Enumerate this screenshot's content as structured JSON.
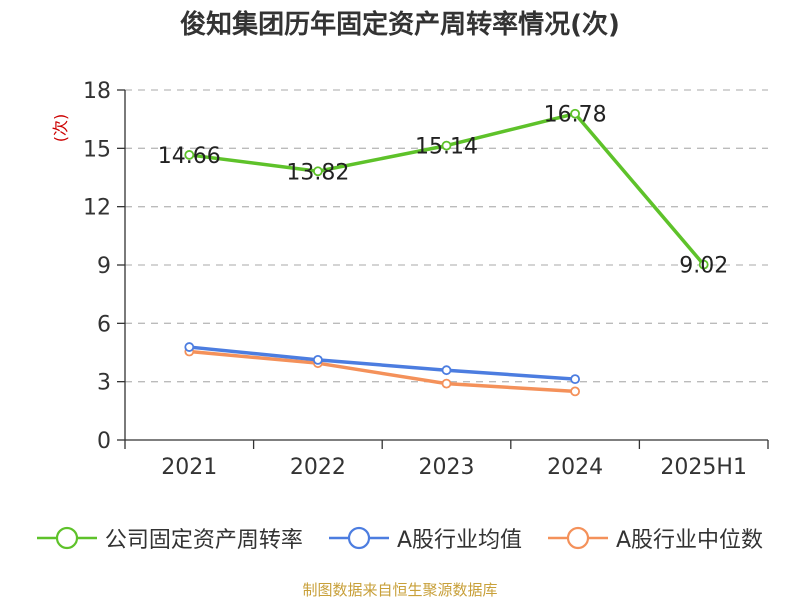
{
  "chart_data": {
    "type": "line",
    "title": "俊知集团历年固定资产周转率情况(次)",
    "ylabel": "(次)",
    "categories": [
      "2021",
      "2022",
      "2023",
      "2024",
      "2025H1"
    ],
    "y_ticks": [
      "0",
      "3",
      "6",
      "9",
      "12",
      "15",
      "18"
    ],
    "ylim": [
      0,
      18
    ],
    "grid": true,
    "legend_position": "bottom",
    "series": [
      {
        "name": "公司固定资产周转率",
        "color": "#5ec22a",
        "values": [
          14.66,
          13.82,
          15.14,
          16.78,
          9.02
        ],
        "labels": [
          "14.66",
          "13.82",
          "15.14",
          "16.78",
          "9.02"
        ]
      },
      {
        "name": "A股行业均值",
        "color": "#4c7de0",
        "values": [
          4.78,
          4.12,
          3.59,
          3.13,
          null
        ]
      },
      {
        "name": "A股行业中位数",
        "color": "#f4915a",
        "values": [
          4.55,
          3.95,
          2.9,
          2.5,
          null
        ]
      }
    ]
  },
  "source": "制图数据来自恒生聚源数据库"
}
